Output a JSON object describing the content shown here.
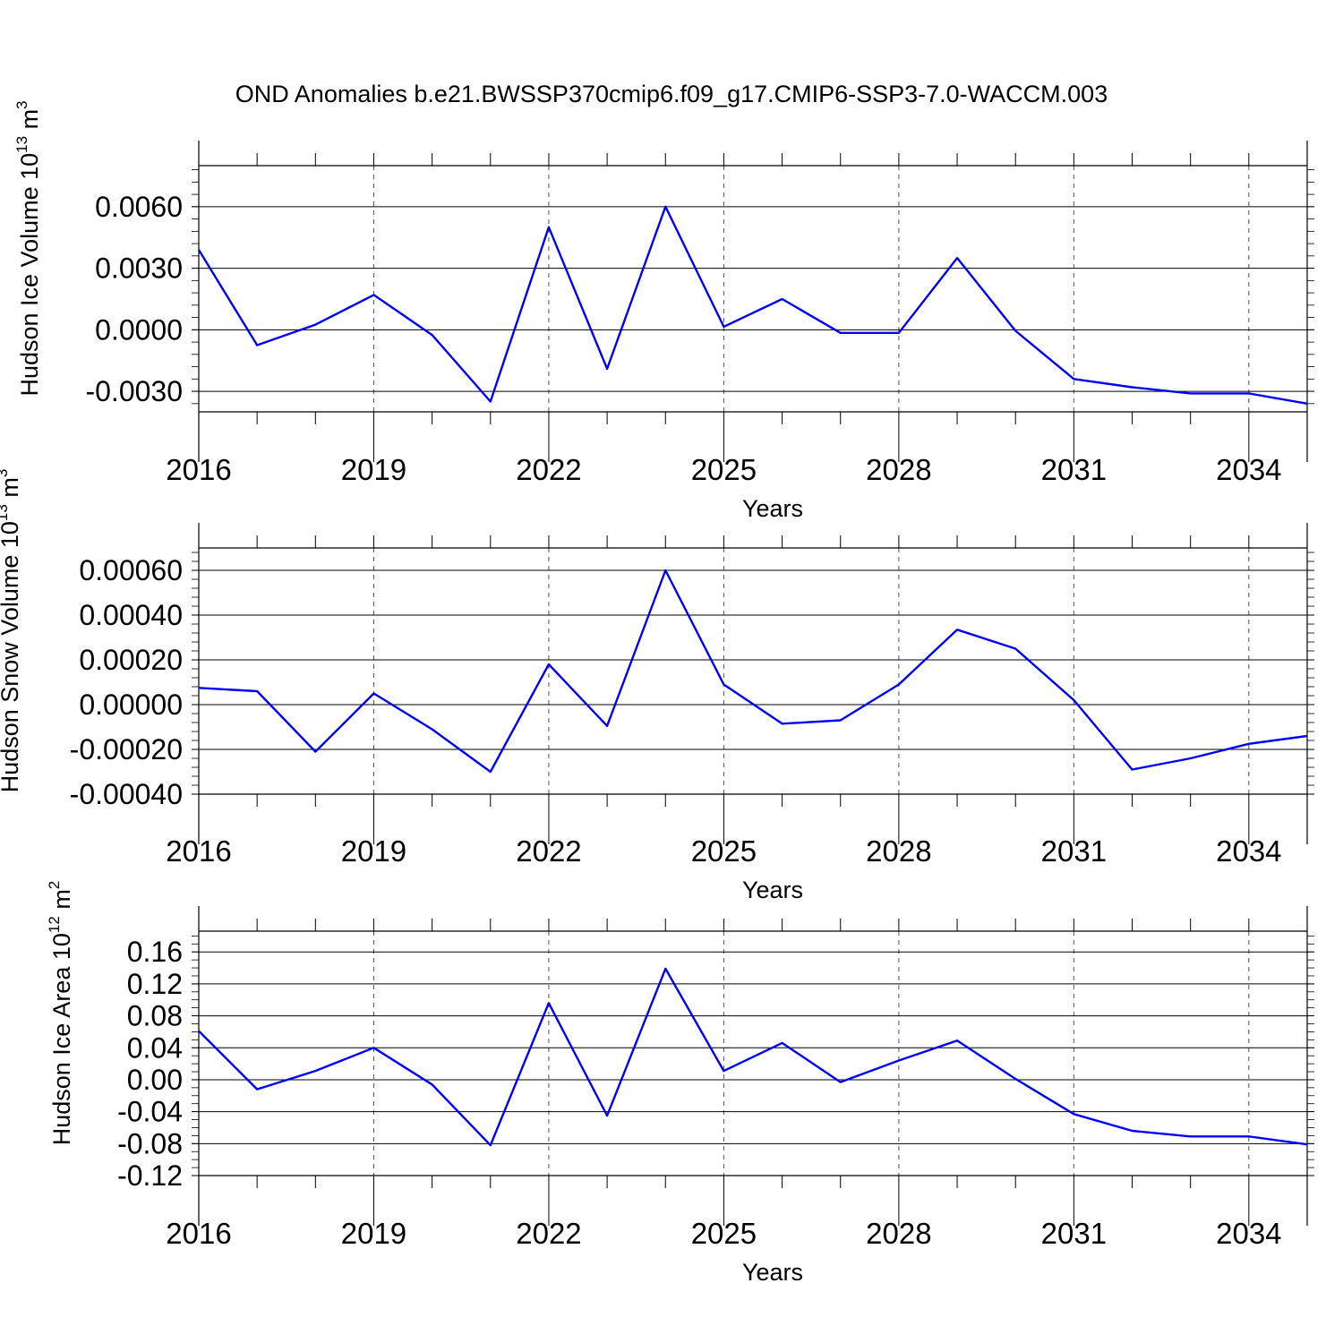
{
  "title": "OND Anomalies b.e21.BWSSP370cmip6.f09_g17.CMIP6-SSP3-7.0-WACCM.003",
  "colors": {
    "line": "#0000ff",
    "axis": "#000000",
    "grid": "#555555"
  },
  "chart_data": [
    {
      "type": "line",
      "ylabel": "Hudson Ice Volume 10",
      "ylabel_exp": "13",
      "ylabel_unit": "m",
      "ylabel_unit_exp": "3",
      "xlabel": "Years",
      "xticks": [
        "2016",
        "2019",
        "2022",
        "2025",
        "2028",
        "2031",
        "2034"
      ],
      "xlim": [
        2016,
        2035
      ],
      "ylim": [
        -0.004,
        0.008
      ],
      "yticks": [
        "0.0060",
        "0.0030",
        "0.0000",
        "-0.0030"
      ],
      "ytick_values": [
        0.006,
        0.003,
        0.0,
        -0.003
      ],
      "grid": "vertical dashed at major x ticks",
      "x": [
        2016,
        2017,
        2018,
        2019,
        2020,
        2021,
        2022,
        2023,
        2024,
        2025,
        2026,
        2027,
        2028,
        2029,
        2030,
        2031,
        2032,
        2033,
        2034,
        2035
      ],
      "values": [
        0.0039,
        -0.00075,
        0.00025,
        0.0017,
        -0.00025,
        -0.0035,
        0.005,
        -0.0019,
        0.006,
        0.00015,
        0.0015,
        -0.00015,
        -0.00015,
        0.0035,
        -5e-05,
        -0.0024,
        -0.0028,
        -0.0031,
        -0.0031,
        -0.0036
      ]
    },
    {
      "type": "line",
      "ylabel": "Hudson Snow Volume 10",
      "ylabel_exp": "13",
      "ylabel_unit": "m",
      "ylabel_unit_exp": "3",
      "xlabel": "Years",
      "xticks": [
        "2016",
        "2019",
        "2022",
        "2025",
        "2028",
        "2031",
        "2034"
      ],
      "xlim": [
        2016,
        2035
      ],
      "ylim": [
        -0.0004,
        0.0007
      ],
      "yticks": [
        "0.00060",
        "0.00040",
        "0.00020",
        "0.00000",
        "-0.00020",
        "-0.00040"
      ],
      "ytick_values": [
        0.0006,
        0.0004,
        0.0002,
        0.0,
        -0.0002,
        -0.0004
      ],
      "grid": "vertical dashed at major x ticks",
      "x": [
        2016,
        2017,
        2018,
        2019,
        2020,
        2021,
        2022,
        2023,
        2024,
        2025,
        2026,
        2027,
        2028,
        2029,
        2030,
        2031,
        2032,
        2033,
        2034,
        2035
      ],
      "values": [
        7.5e-05,
        6e-05,
        -0.00021,
        5e-05,
        -0.00011,
        -0.0003,
        0.00018,
        -9.5e-05,
        0.0006,
        9e-05,
        -8.5e-05,
        -7e-05,
        9e-05,
        0.000335,
        0.00025,
        2e-05,
        -0.00029,
        -0.00024,
        -0.000175,
        -0.00014
      ]
    },
    {
      "type": "line",
      "ylabel": "Hudson Ice Area 10",
      "ylabel_exp": "12",
      "ylabel_unit": "m",
      "ylabel_unit_exp": "2",
      "xlabel": "Years",
      "xticks": [
        "2016",
        "2019",
        "2022",
        "2025",
        "2028",
        "2031",
        "2034"
      ],
      "xlim": [
        2016,
        2035
      ],
      "ylim": [
        -0.12,
        0.186
      ],
      "yticks": [
        "0.16",
        "0.12",
        "0.08",
        "0.04",
        "0.00",
        "-0.04",
        "-0.08",
        "-0.12"
      ],
      "ytick_values": [
        0.16,
        0.12,
        0.08,
        0.04,
        0.0,
        -0.04,
        -0.08,
        -0.12
      ],
      "grid": "vertical dashed at major x ticks",
      "x": [
        2016,
        2017,
        2018,
        2019,
        2020,
        2021,
        2022,
        2023,
        2024,
        2025,
        2026,
        2027,
        2028,
        2029,
        2030,
        2031,
        2032,
        2033,
        2034,
        2035
      ],
      "values": [
        0.061,
        -0.012,
        0.011,
        0.04,
        -0.006,
        -0.082,
        0.096,
        -0.045,
        0.139,
        0.011,
        0.046,
        -0.003,
        0.024,
        0.049,
        0.001,
        -0.043,
        -0.064,
        -0.071,
        -0.071,
        -0.081
      ]
    }
  ]
}
